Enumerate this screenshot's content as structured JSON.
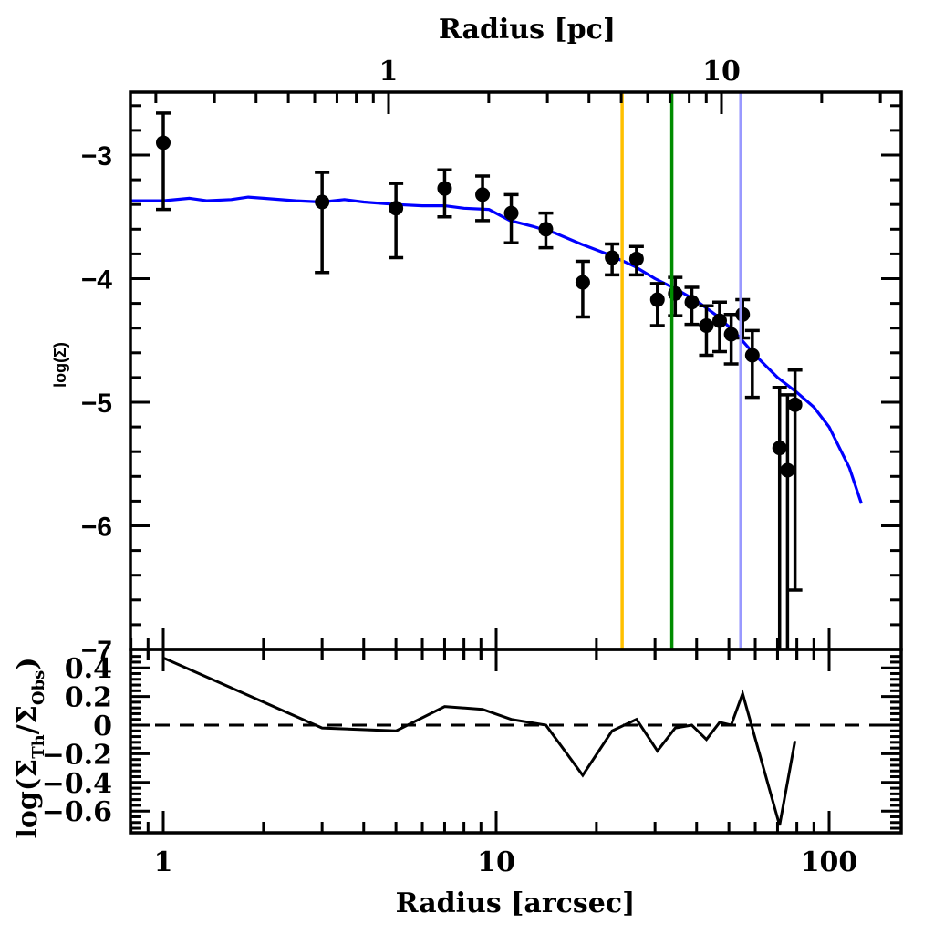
{
  "chart_data": [
    {
      "id": "surface-density-profile",
      "type": "scatter",
      "title": "",
      "xlabel": "Radius [arcsec]",
      "x2label": "Radius [pc]",
      "ylabel": "log(Σ)",
      "xscale": "log",
      "xlim": [
        0.8,
        150
      ],
      "ylim": [
        -7,
        -2.5
      ],
      "x_ticks": [
        1,
        10,
        100
      ],
      "x_tick_labels": [
        "1",
        "10",
        "100"
      ],
      "x2_ticks_arcsec": [
        4.75,
        47.5
      ],
      "x2_tick_labels": [
        "1",
        "10"
      ],
      "y_ticks": [
        -3,
        -4,
        -5,
        -6,
        -7
      ],
      "y_tick_labels": [
        "−3",
        "−4",
        "−5",
        "−6",
        "−7"
      ],
      "grid": false,
      "series": [
        {
          "name": "observed",
          "kind": "points-with-errorbars",
          "color": "#000000",
          "x": [
            1.0,
            3.0,
            5.0,
            7.0,
            9.1,
            11.1,
            14.1,
            18.2,
            22.3,
            26.4,
            30.5,
            34.5,
            38.7,
            42.8,
            46.9,
            50.8,
            55.0,
            58.8,
            71.0,
            75.0,
            79.0
          ],
          "y": [
            -2.9,
            -3.38,
            -3.43,
            -3.27,
            -3.32,
            -3.47,
            -3.6,
            -4.03,
            -3.83,
            -3.84,
            -4.17,
            -4.12,
            -4.19,
            -4.38,
            -4.34,
            -4.45,
            -4.29,
            -4.62,
            -5.37,
            -5.55,
            -5.02
          ],
          "y_err_high": [
            -2.66,
            -3.14,
            -3.23,
            -3.12,
            -3.17,
            -3.32,
            -3.47,
            -3.86,
            -3.72,
            -3.74,
            -4.04,
            -3.99,
            -4.07,
            -4.22,
            -4.19,
            -4.29,
            -4.17,
            -4.42,
            -4.88,
            -4.94,
            -4.74
          ],
          "y_err_low": [
            -3.44,
            -3.95,
            -3.83,
            -3.5,
            -3.53,
            -3.71,
            -3.75,
            -4.31,
            -3.97,
            -3.97,
            -4.38,
            -4.3,
            -4.37,
            -4.62,
            -4.59,
            -4.69,
            -4.48,
            -4.96,
            -7.0,
            -7.0,
            -6.52
          ]
        },
        {
          "name": "model",
          "kind": "line",
          "color": "#0000ff",
          "x": [
            0.8,
            1.0,
            1.2,
            1.35,
            1.6,
            1.8,
            2.0,
            2.5,
            3.0,
            3.5,
            4.0,
            5.0,
            6.0,
            7.0,
            8.0,
            9.5,
            11.0,
            13.0,
            15.0,
            18.0,
            22.0,
            26.0,
            30.0,
            35.0,
            40.0,
            46.0,
            52.0,
            60.0,
            70.0,
            80.0,
            90.0,
            100.0,
            115.0,
            125.0
          ],
          "y": [
            -3.37,
            -3.37,
            -3.35,
            -3.37,
            -3.36,
            -3.34,
            -3.35,
            -3.37,
            -3.38,
            -3.36,
            -3.38,
            -3.4,
            -3.41,
            -3.41,
            -3.43,
            -3.44,
            -3.53,
            -3.58,
            -3.63,
            -3.72,
            -3.81,
            -3.9,
            -4.0,
            -4.09,
            -4.18,
            -4.3,
            -4.43,
            -4.62,
            -4.8,
            -4.92,
            -5.04,
            -5.2,
            -5.53,
            -5.82
          ]
        }
      ],
      "vertical_lines": [
        {
          "name": "orange-marker",
          "x": 23.9,
          "color": "#ffc000"
        },
        {
          "name": "green-marker",
          "x": 33.7,
          "color": "#008c00"
        },
        {
          "name": "lightblue-marker",
          "x": 54.3,
          "color": "#9999ff"
        }
      ]
    },
    {
      "id": "residuals",
      "type": "line",
      "xlabel": "Radius [arcsec]",
      "ylabel": "log(Σ_Th/Σ_Obs)",
      "ylabel_parts": {
        "pre": "log(Σ",
        "sub1": "Th",
        "mid": "/Σ",
        "sub2": "Obs",
        "post": ")"
      },
      "xscale": "log",
      "xlim": [
        0.8,
        150
      ],
      "ylim": [
        -0.75,
        0.5
      ],
      "y_ticks": [
        0.4,
        0.2,
        0,
        -0.2,
        -0.4,
        -0.6
      ],
      "y_tick_labels": [
        "0.4",
        "0.2",
        "0",
        "−0.2",
        "−0.4",
        "−0.6"
      ],
      "grid": false,
      "series": [
        {
          "name": "residual",
          "color": "#000000",
          "x": [
            1.0,
            3.0,
            5.0,
            7.0,
            9.1,
            11.1,
            14.1,
            18.2,
            22.3,
            26.4,
            30.5,
            34.5,
            38.7,
            42.8,
            46.9,
            50.8,
            55.0,
            71.0,
            79.0
          ],
          "y": [
            0.47,
            -0.02,
            -0.04,
            0.13,
            0.11,
            0.04,
            0.0,
            -0.35,
            -0.04,
            0.04,
            -0.18,
            -0.02,
            0.0,
            -0.1,
            0.02,
            0.0,
            0.22,
            -0.7,
            -0.11
          ]
        },
        {
          "name": "zero-line",
          "kind": "dashed",
          "color": "#000000",
          "y": 0
        }
      ]
    }
  ]
}
